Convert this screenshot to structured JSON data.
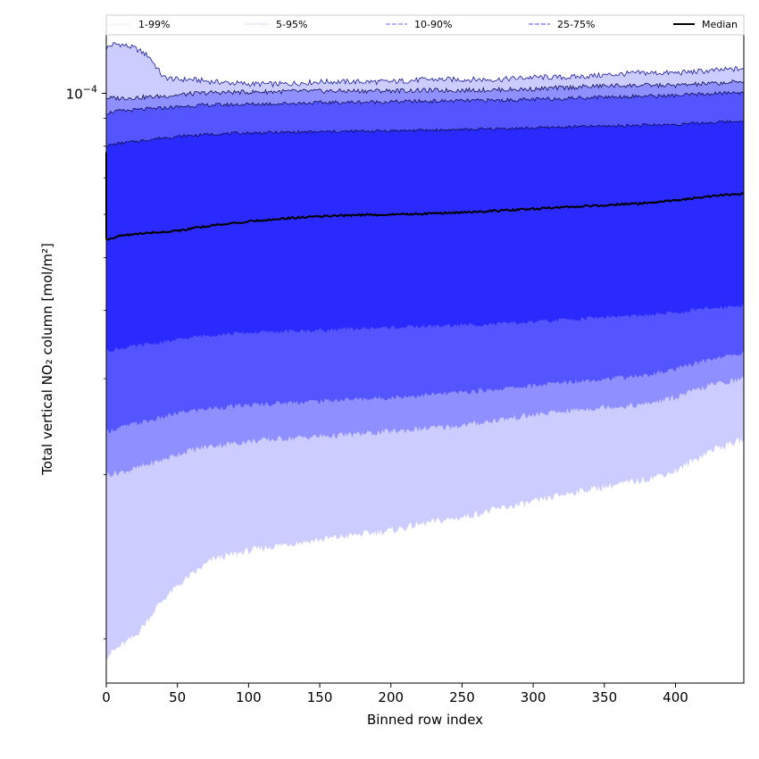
{
  "chart_data": {
    "type": "area",
    "title": "",
    "xlabel": "Binned row index",
    "ylabel": "Total vertical NO₂ column [mol/m²]",
    "xlim": [
      0,
      448
    ],
    "ylim": [
      8.3e-06,
      0.000128
    ],
    "yscale": "log",
    "grid": false,
    "legend_position": "top, across the plot",
    "x_ticks": [
      {
        "value": 0,
        "label": "0"
      },
      {
        "value": 50,
        "label": "50"
      },
      {
        "value": 100,
        "label": "100"
      },
      {
        "value": 150,
        "label": "150"
      },
      {
        "value": 200,
        "label": "200"
      },
      {
        "value": 250,
        "label": "250"
      },
      {
        "value": 300,
        "label": "300"
      },
      {
        "value": 350,
        "label": "350"
      },
      {
        "value": 400,
        "label": "400"
      }
    ],
    "y_ticks": [
      {
        "value": 0.0001,
        "label_base": "10",
        "label_exp": "−4"
      }
    ],
    "y_minor_ticks": [
      1e-05,
      2e-05,
      3e-05,
      4e-05,
      5e-05,
      6e-05,
      7e-05,
      8e-05,
      9e-05
    ],
    "x": [
      0,
      5,
      10,
      20,
      30,
      35,
      40,
      50,
      60,
      75,
      100,
      125,
      150,
      175,
      200,
      225,
      250,
      275,
      300,
      325,
      350,
      375,
      400,
      425,
      448
    ],
    "bands": [
      {
        "name": "1-99%",
        "color": "#ccccff",
        "line_color": "#ccccff",
        "line_style": "dotted",
        "lower": [
          9.3e-06,
          9.5e-06,
          9.7e-06,
          1.01e-05,
          1.09e-05,
          1.14e-05,
          1.18e-05,
          1.25e-05,
          1.31e-05,
          1.4e-05,
          1.45e-05,
          1.49e-05,
          1.52e-05,
          1.55e-05,
          1.58e-05,
          1.63e-05,
          1.67e-05,
          1.73e-05,
          1.78e-05,
          1.85e-05,
          1.9e-05,
          1.95e-05,
          2.03e-05,
          2.22e-05,
          2.32e-05
        ],
        "upper": [
          0.000121,
          0.000123,
          0.000123,
          0.000121,
          0.000117,
          0.000112,
          0.000107,
          0.000106,
          0.000106,
          0.000105,
          0.000104,
          0.000104,
          0.000105,
          0.000105,
          0.000105,
          0.000106,
          0.000106,
          0.000106,
          0.000107,
          0.000107,
          0.000108,
          0.000109,
          0.000109,
          0.00011,
          0.000111
        ]
      },
      {
        "name": "5-95%",
        "color": "#8f8fff",
        "line_color": "#9090ff",
        "line_style": "dotted",
        "lower": [
          2e-05,
          2.01e-05,
          2.02e-05,
          2.05e-05,
          2.09e-05,
          2.11e-05,
          2.13e-05,
          2.18e-05,
          2.22e-05,
          2.26e-05,
          2.3e-05,
          2.33e-05,
          2.35e-05,
          2.37e-05,
          2.4e-05,
          2.43e-05,
          2.46e-05,
          2.52e-05,
          2.57e-05,
          2.62e-05,
          2.66e-05,
          2.68e-05,
          2.77e-05,
          2.92e-05,
          3e-05
        ],
        "upper": [
          9.8e-05,
          9.8e-05,
          9.8e-05,
          9.82e-05,
          9.84e-05,
          9.86e-05,
          9.88e-05,
          9.93e-05,
          9.98e-05,
          0.0001003,
          0.0001005,
          0.0001008,
          0.0001009,
          0.000101,
          0.0001011,
          0.0001012,
          0.0001013,
          0.0001015,
          0.0001018,
          0.0001025,
          0.0001032,
          0.0001034,
          0.0001034,
          0.0001042,
          0.000105
        ]
      },
      {
        "name": "10-90%",
        "color": "#5555ff",
        "line_color": "#6b6bff",
        "line_style": "dashed",
        "lower": [
          2.4e-05,
          2.42e-05,
          2.44e-05,
          2.48e-05,
          2.51e-05,
          2.53e-05,
          2.55e-05,
          2.59e-05,
          2.62e-05,
          2.65e-05,
          2.68e-05,
          2.71e-05,
          2.73e-05,
          2.75e-05,
          2.77e-05,
          2.8e-05,
          2.83e-05,
          2.87e-05,
          2.91e-05,
          2.96e-05,
          3e-05,
          3.03e-05,
          3.12e-05,
          3.26e-05,
          3.34e-05
        ],
        "upper": [
          9.2e-05,
          9.25e-05,
          9.28e-05,
          9.32e-05,
          9.36e-05,
          9.38e-05,
          9.4e-05,
          9.44e-05,
          9.49e-05,
          9.52e-05,
          9.55e-05,
          9.58e-05,
          9.61e-05,
          9.63e-05,
          9.65e-05,
          9.67e-05,
          9.69e-05,
          9.71e-05,
          9.74e-05,
          9.8e-05,
          9.85e-05,
          9.88e-05,
          9.9e-05,
          9.98e-05,
          0.0001004
        ]
      },
      {
        "name": "25-75%",
        "color": "#2a2aff",
        "line_color": "#4848ff",
        "line_style": "dashed",
        "lower": [
          3.37e-05,
          3.39e-05,
          3.41e-05,
          3.44e-05,
          3.47e-05,
          3.48e-05,
          3.5e-05,
          3.53e-05,
          3.57e-05,
          3.61e-05,
          3.64e-05,
          3.66e-05,
          3.68e-05,
          3.7e-05,
          3.72e-05,
          3.74e-05,
          3.76e-05,
          3.78e-05,
          3.81e-05,
          3.85e-05,
          3.89e-05,
          3.91e-05,
          3.96e-05,
          4.04e-05,
          4.09e-05
        ],
        "upper": [
          8e-05,
          8.06e-05,
          8.1e-05,
          8.16e-05,
          8.22e-05,
          8.26e-05,
          8.29e-05,
          8.33e-05,
          8.37e-05,
          8.42e-05,
          8.46e-05,
          8.48e-05,
          8.5e-05,
          8.52e-05,
          8.54e-05,
          8.56e-05,
          8.58e-05,
          8.61e-05,
          8.64e-05,
          8.68e-05,
          8.71e-05,
          8.74e-05,
          8.77e-05,
          8.84e-05,
          8.9e-05
        ]
      }
    ],
    "median": {
      "name": "Median",
      "color": "#000000",
      "values": [
        5.4e-05,
        5.44e-05,
        5.48e-05,
        5.52e-05,
        5.55e-05,
        5.56e-05,
        5.57e-05,
        5.6e-05,
        5.65e-05,
        5.73e-05,
        5.82e-05,
        5.9e-05,
        5.95e-05,
        5.98e-05,
        6e-05,
        6.02e-05,
        6.05e-05,
        6.09e-05,
        6.14e-05,
        6.19e-05,
        6.24e-05,
        6.28e-05,
        6.36e-05,
        6.48e-05,
        6.55e-05
      ]
    }
  }
}
